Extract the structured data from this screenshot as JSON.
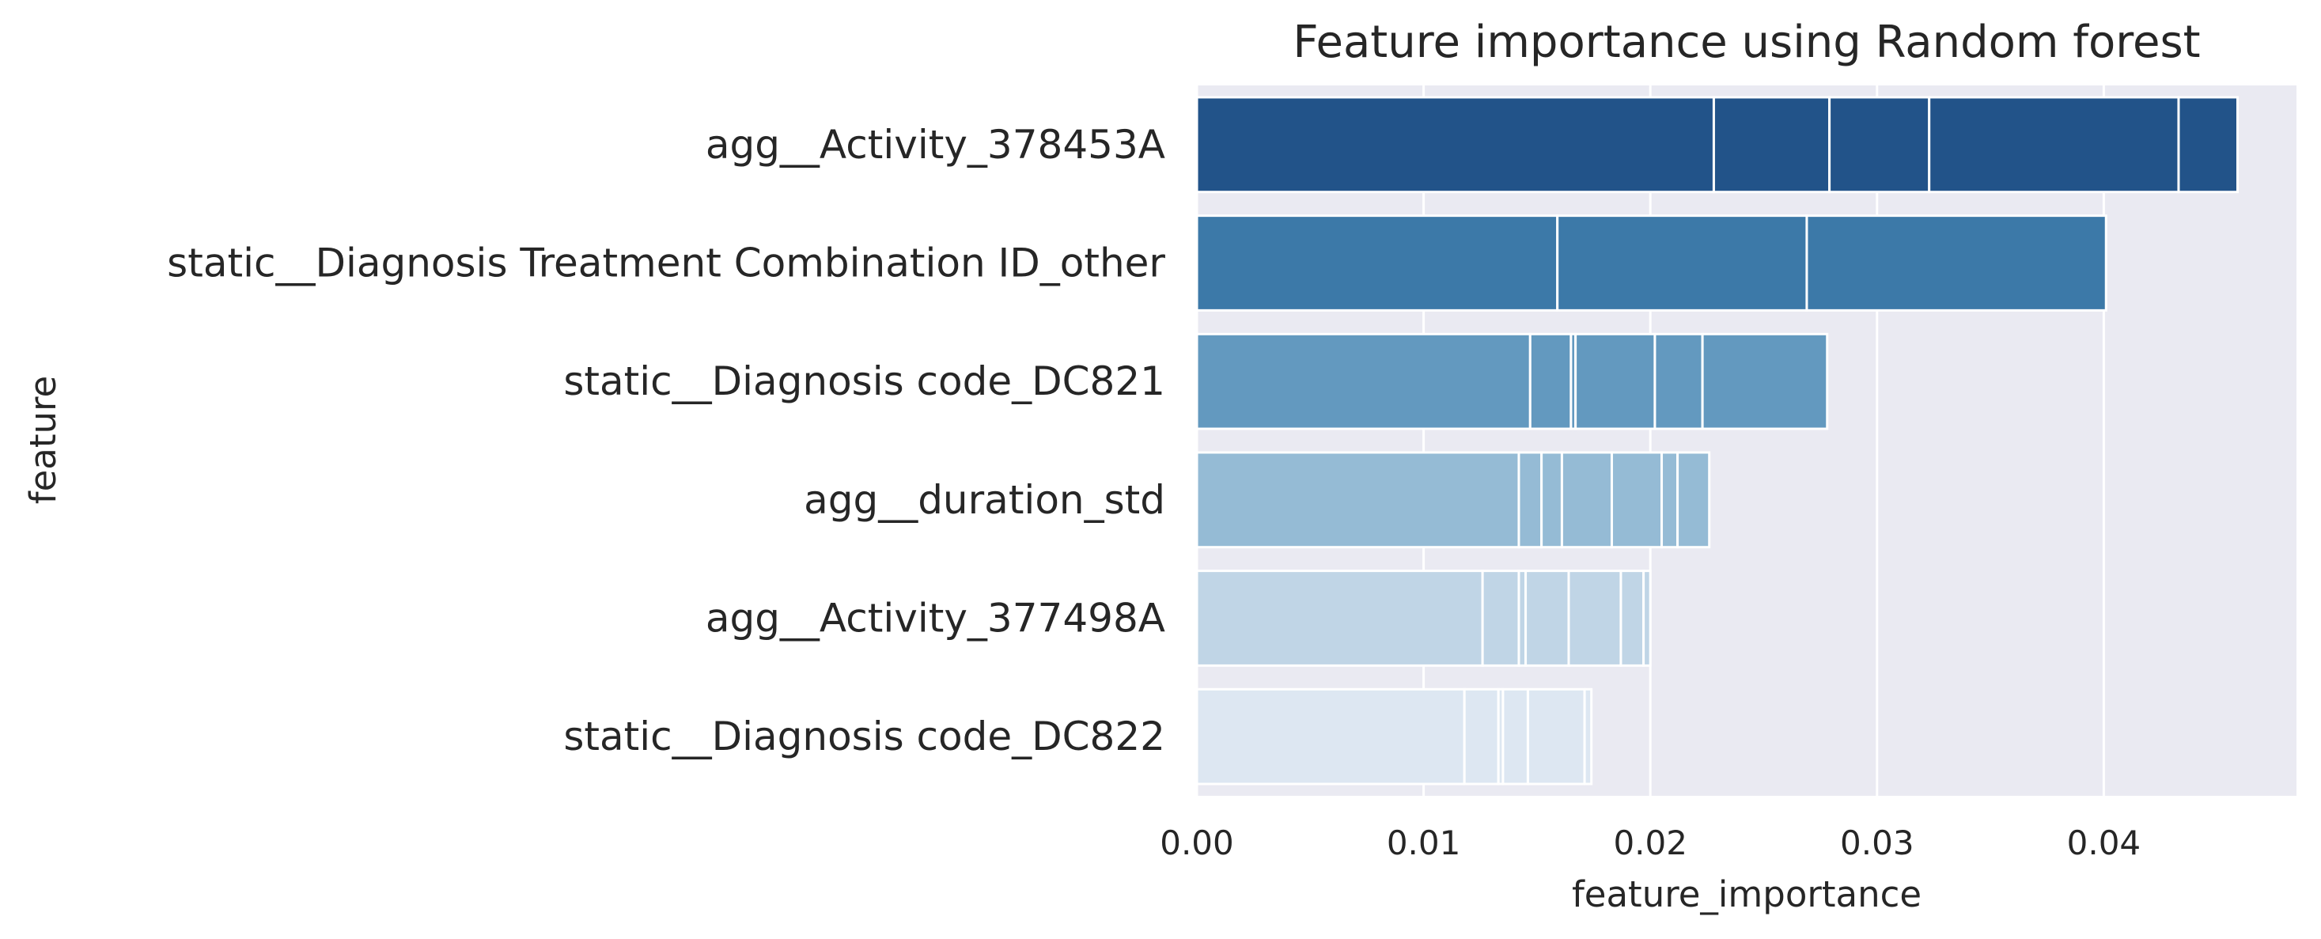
{
  "chart_data": {
    "type": "bar",
    "orientation": "horizontal",
    "title": "Feature importance using Random forest",
    "xlabel": "feature_importance",
    "ylabel": "feature",
    "xlim": [
      0,
      0.0485
    ],
    "xticks": [
      "0.00",
      "0.01",
      "0.02",
      "0.03",
      "0.04"
    ],
    "xtick_values": [
      0,
      0.01,
      0.02,
      0.03,
      0.04
    ],
    "grid": true,
    "categories": [
      "agg__Activity_378453A",
      "static__Diagnosis Treatment Combination ID_other",
      "static__Diagnosis code_DC821",
      "agg__duration_std",
      "agg__Activity_377498A",
      "static__Diagnosis code_DC822"
    ],
    "segment_boundaries": [
      [
        0.0228,
        0.0279,
        0.0323,
        0.0433,
        0.0459
      ],
      [
        0.0159,
        0.0269,
        0.0401
      ],
      [
        0.0147,
        0.0165,
        0.0167,
        0.0202,
        0.0223,
        0.0278
      ],
      [
        0.0142,
        0.0152,
        0.0161,
        0.0183,
        0.0205,
        0.0212,
        0.0226
      ],
      [
        0.0126,
        0.0142,
        0.0145,
        0.0164,
        0.0187,
        0.0197,
        0.02
      ],
      [
        0.0118,
        0.0133,
        0.0135,
        0.0146,
        0.0171,
        0.0174
      ]
    ],
    "colors": [
      "#225389",
      "#3c79a8",
      "#6399bf",
      "#95bbd5",
      "#c0d5e6",
      "#dde7f2"
    ],
    "plot_background": "#eaeaf2",
    "grid_color": "#ffffff"
  }
}
